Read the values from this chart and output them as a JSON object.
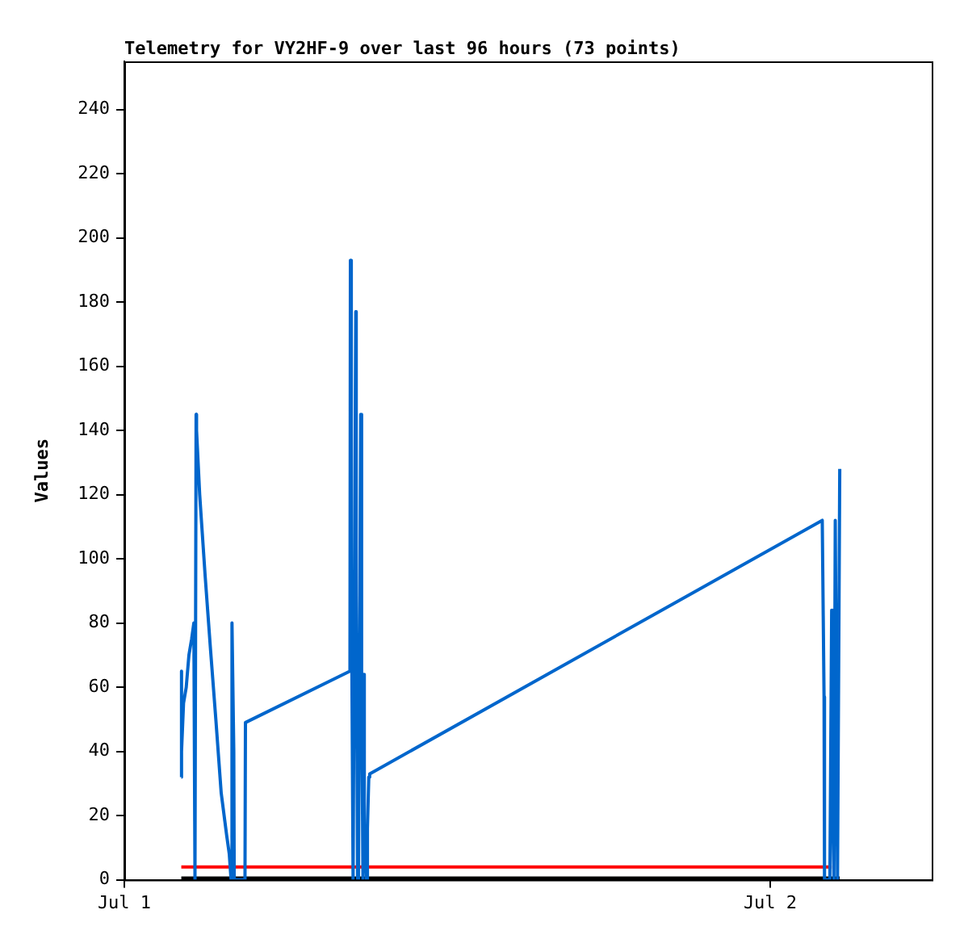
{
  "chart_data": {
    "type": "line",
    "title": "Telemetry for VY2HF-9 over last 96 hours (73 points)",
    "ylabel": "Values",
    "xlim": [
      "--07-01",
      "--07-02T06:00"
    ],
    "xticks": [
      {
        "value": "--07-01",
        "label": "Jul 1"
      },
      {
        "value": "--07-02",
        "label": "Jul 2"
      }
    ],
    "ylim": [
      0,
      255
    ],
    "yticks": [
      0,
      20,
      40,
      60,
      80,
      100,
      120,
      140,
      160,
      180,
      200,
      220,
      240
    ],
    "grid": false,
    "legend": false,
    "marker": "none",
    "line_style": "solid",
    "series": [
      {
        "color": "#0066cc",
        "x": [
          "--07-01T02:07",
          "--07-01T02:07",
          "--07-01T02:08",
          "--07-01T02:12",
          "--07-01T02:18",
          "--07-01T02:24",
          "--07-01T02:30",
          "--07-01T02:35",
          "--07-01T02:37",
          "--07-01T02:38",
          "--07-01T02:40",
          "--07-01T02:41",
          "--07-01T02:48",
          "--07-01T03:00",
          "--07-01T03:12",
          "--07-01T03:24",
          "--07-01T03:36",
          "--07-01T03:48",
          "--07-01T03:54",
          "--07-01T03:58",
          "--07-01T04:00",
          "--07-01T04:04",
          "--07-01T04:05",
          "--07-01T04:07",
          "--07-01T04:08",
          "--07-01T04:29",
          "--07-01T04:30",
          "--07-01T08:23",
          "--07-01T08:24",
          "--07-01T08:26",
          "--07-01T08:30",
          "--07-01T08:31",
          "--07-01T08:36",
          "--07-01T08:37",
          "--07-01T08:40",
          "--07-01T08:42",
          "--07-01T08:47",
          "--07-01T08:49",
          "--07-01T08:52",
          "--07-01T08:53",
          "--07-01T08:55",
          "--07-01T09:00",
          "--07-01T09:02",
          "--07-01T09:05",
          "--07-01T09:07",
          "--07-02T01:56",
          "--07-02T02:00",
          "--07-02T02:01",
          "--07-02T02:13",
          "--07-02T02:17",
          "--07-02T02:19",
          "--07-02T02:22",
          "--07-02T02:25",
          "--07-02T02:30",
          "--07-02T02:35"
        ],
        "values": [
          32,
          65,
          40,
          55,
          60,
          70,
          75,
          80,
          0,
          0,
          145,
          140,
          120,
          95,
          72,
          50,
          27,
          14,
          8,
          0,
          80,
          40,
          0,
          0,
          0,
          0,
          49,
          65,
          193,
          97,
          0,
          0,
          177,
          89,
          0,
          0,
          145,
          66,
          0,
          64,
          16,
          0,
          16,
          32,
          33,
          112,
          57,
          0,
          0,
          84,
          28,
          0,
          112,
          0,
          128
        ]
      },
      {
        "color": "#ff0000",
        "x": [
          "--07-01T02:07",
          "--07-02T02:17"
        ],
        "values": [
          4,
          4
        ]
      },
      {
        "color": "#000000",
        "x": [
          "--07-01T02:07",
          "--07-02T02:35"
        ],
        "values": [
          0.5,
          0.5
        ]
      }
    ]
  }
}
